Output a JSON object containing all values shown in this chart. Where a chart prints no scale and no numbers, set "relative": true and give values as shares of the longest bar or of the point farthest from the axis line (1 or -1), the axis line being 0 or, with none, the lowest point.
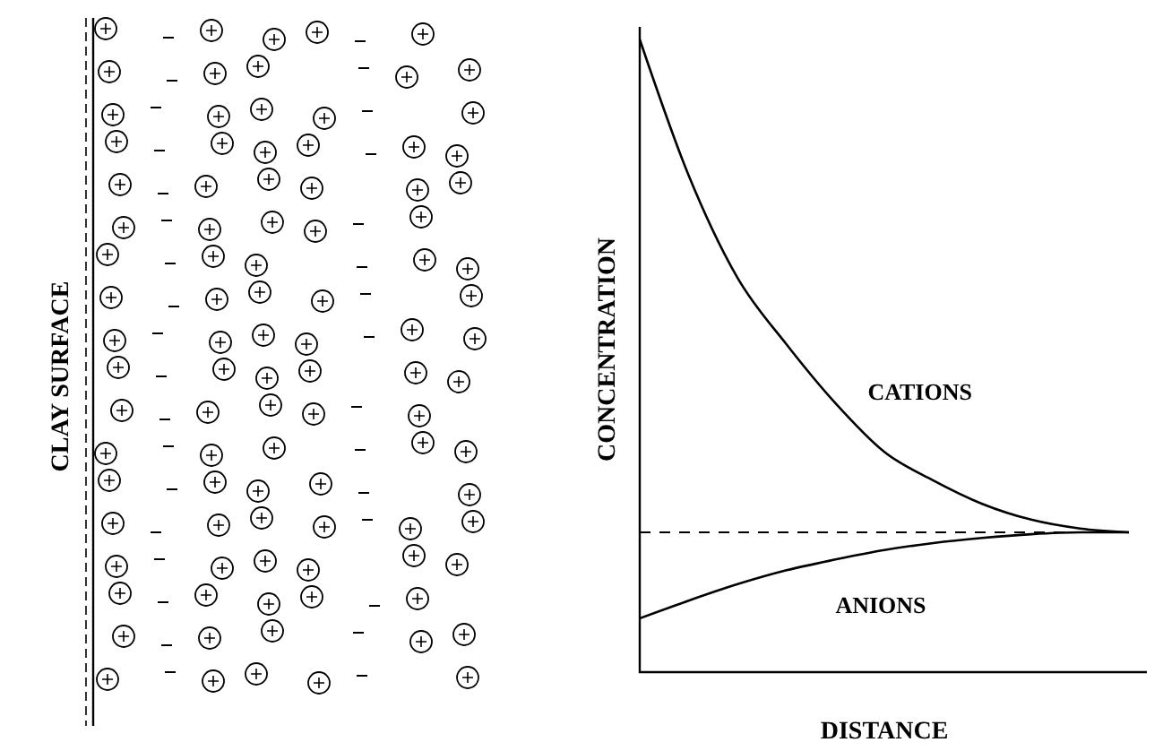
{
  "chart_data": {
    "type": "line",
    "relative": true,
    "xlabel": "DISTANCE",
    "ylabel": "CONCENTRATION",
    "annotations": [
      "CLAY SURFACE"
    ],
    "categories": [
      null,
      null,
      null,
      null,
      null,
      null,
      null,
      null,
      null,
      null,
      null
    ],
    "series": [
      {
        "name": "CATIONS",
        "color": "#000000",
        "values": [
          1,
          0.785,
          0.623,
          0.518,
          0.425,
          0.348,
          0.303,
          0.266,
          0.241,
          0.227,
          0.221
        ]
      },
      {
        "name": "ANIONS",
        "color": "#000000",
        "values": [
          0.085,
          0.113,
          0.139,
          0.161,
          0.178,
          0.193,
          0.204,
          0.212,
          0.218,
          0.221,
          0.221
        ]
      }
    ],
    "ref_lines": [
      {
        "axis": "y",
        "value": 0.221,
        "line_style": "dashed"
      }
    ],
    "marker": "none",
    "line_style": "solid"
  }
}
